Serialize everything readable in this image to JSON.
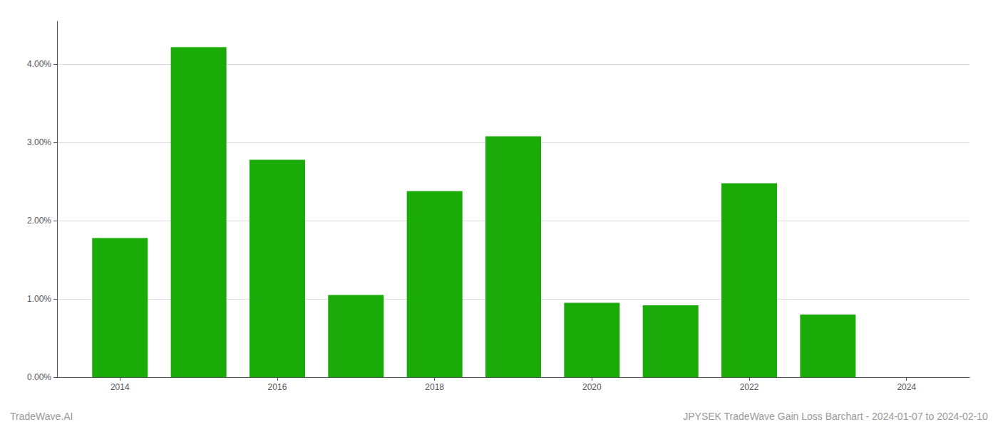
{
  "chart_data": {
    "type": "bar",
    "x": [
      2014,
      2015,
      2016,
      2017,
      2018,
      2019,
      2020,
      2021,
      2022,
      2023
    ],
    "values": [
      0.01778,
      0.0422,
      0.0278,
      0.0105,
      0.0238,
      0.0308,
      0.0095,
      0.0092,
      0.0248,
      0.008
    ],
    "color": "#1aab08",
    "xlim": [
      2013.2,
      2024.8
    ],
    "xticks": [
      2014,
      2016,
      2018,
      2020,
      2022,
      2024
    ],
    "ylim": [
      0.0,
      0.0455
    ],
    "yticks": [
      {
        "value": 0.0,
        "label": "0.00%"
      },
      {
        "value": 0.01,
        "label": "1.00%"
      },
      {
        "value": 0.02,
        "label": "2.00%"
      },
      {
        "value": 0.03,
        "label": "3.00%"
      },
      {
        "value": 0.04,
        "label": "4.00%"
      }
    ],
    "grid": true,
    "annotations": [
      "TradeWave.AI",
      "JPYSEK TradeWave Gain Loss Barchart - 2024-01-07 to 2024-02-10"
    ]
  }
}
